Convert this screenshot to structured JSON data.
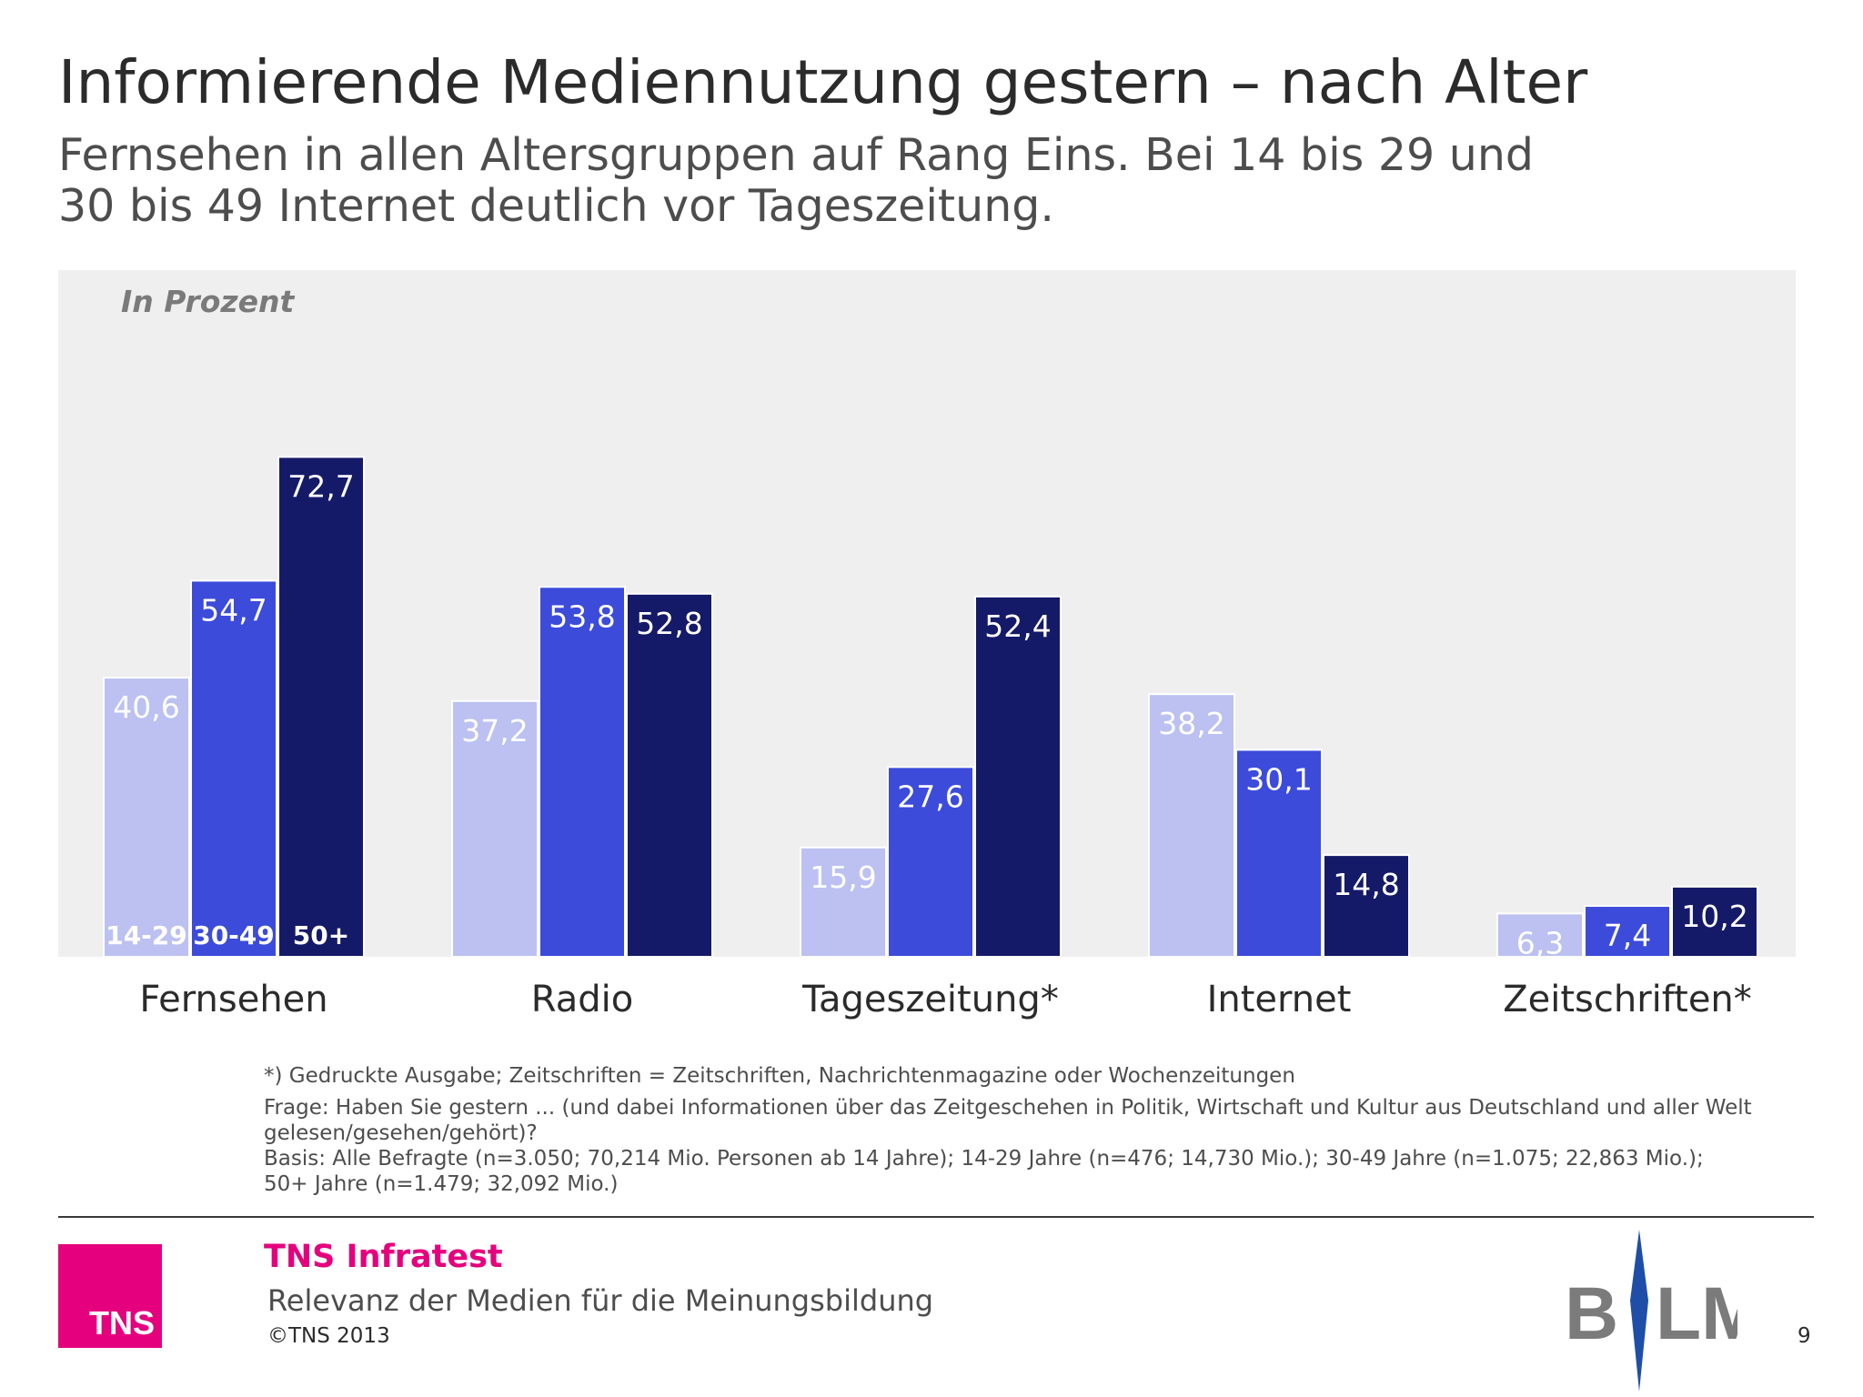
{
  "header": {
    "title": "Informierende Mediennutzung gestern – nach Alter",
    "subtitle_line1": "Fernsehen in allen Altersgruppen auf Rang Eins. Bei 14 bis 29 und",
    "subtitle_line2": "30 bis 49 Internet deutlich vor Tageszeitung."
  },
  "chart_data": {
    "type": "bar",
    "unit_label": "In Prozent",
    "categories": [
      "Fernsehen",
      "Radio",
      "Tageszeitung*",
      "Internet",
      "Zeitschriften*"
    ],
    "series": [
      {
        "name": "14-29",
        "color": "#bcc1f1",
        "label_color": "#ffffff",
        "values": [
          40.6,
          37.2,
          15.9,
          38.2,
          6.3
        ],
        "labels": [
          "40,6",
          "37,2",
          "15,9",
          "38,2",
          "6,3"
        ]
      },
      {
        "name": "30-49",
        "color": "#3c4bda",
        "label_color": "#ffffff",
        "values": [
          54.7,
          53.8,
          27.6,
          30.1,
          7.4
        ],
        "labels": [
          "54,7",
          "53,8",
          "27,6",
          "30,1",
          "7,4"
        ]
      },
      {
        "name": "50+",
        "color": "#151a68",
        "label_color": "#ffffff",
        "values": [
          72.7,
          52.8,
          52.4,
          14.8,
          10.2
        ],
        "labels": [
          "72,7",
          "52,8",
          "52,4",
          "14,8",
          "10,2"
        ]
      }
    ],
    "ylim": [
      0,
      100
    ],
    "grid": false,
    "legend": "inside first group bars"
  },
  "footnotes": {
    "note": "*) Gedruckte Ausgabe; Zeitschriften = Zeitschriften, Nachrichtenmagazine oder Wochenzeitungen",
    "question_line1": "Frage: Haben Sie gestern ... (und dabei Informationen über das Zeitgeschehen in Politik, Wirtschaft und Kultur aus Deutschland und aller Welt",
    "question_line2": "gelesen/gesehen/gehört)?",
    "basis_line1": "Basis: Alle Befragte (n=3.050; 70,214 Mio. Personen ab 14 Jahre); 14-29 Jahre (n=476; 14,730 Mio.); 30-49 Jahre (n=1.075; 22,863 Mio.);",
    "basis_line2": "50+ Jahre (n=1.479; 32,092 Mio.)"
  },
  "footer": {
    "logo_text": "TNS",
    "brand": "TNS Infratest",
    "report_title": "Relevanz der Medien für die Meinungsbildung",
    "copyright": "©TNS 2013",
    "partner_logo_text": "BLM",
    "page_number": "9",
    "brand_color": "#e5007d"
  }
}
